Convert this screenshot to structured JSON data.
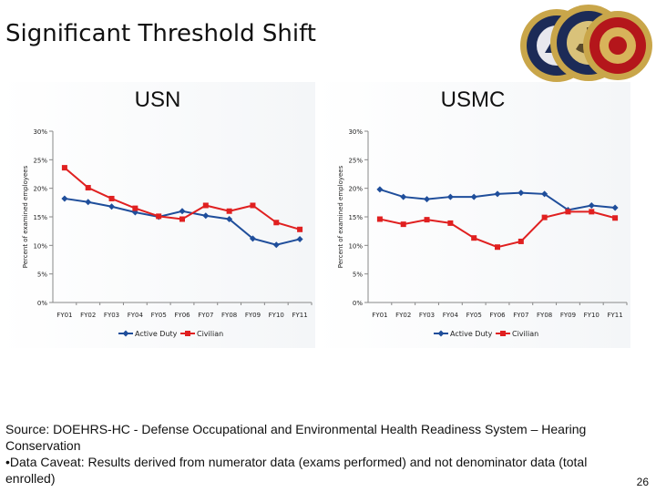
{
  "slide": {
    "title": "Significant Threshold Shift",
    "source_line1": "Source: DOEHRS-HC - Defense Occupational and Environmental Health Readiness System – Hearing Conservation",
    "source_line2": "•Data Caveat:  Results derived from numerator data (exams performed) and not denominator data (total enrolled)",
    "page_number": "26"
  },
  "seals": {
    "description_icons": [
      "navy-medicine-seal-icon",
      "department-of-the-navy-seal-icon",
      "marine-corps-seal-icon"
    ]
  },
  "chart_data": [
    {
      "type": "line",
      "title": "USN",
      "ylabel": "Percent of examined employees",
      "xlabel": "",
      "categories": [
        "FY01",
        "FY02",
        "FY03",
        "FY04",
        "FY05",
        "FY06",
        "FY07",
        "FY08",
        "FY09",
        "FY10",
        "FY11"
      ],
      "ylim": [
        0,
        30
      ],
      "yticks": [
        "0%",
        "5%",
        "10%",
        "15%",
        "20%",
        "25%",
        "30%"
      ],
      "grid": false,
      "legend": "bottom",
      "series": [
        {
          "name": "Active Duty",
          "color": "#1f4e9b",
          "marker": "diamond",
          "values": [
            18.2,
            17.6,
            16.8,
            15.8,
            15.0,
            16.0,
            15.2,
            14.6,
            11.2,
            10.1,
            11.1
          ]
        },
        {
          "name": "Civilian",
          "color": "#e02020",
          "marker": "square",
          "values": [
            23.6,
            20.1,
            18.2,
            16.5,
            15.1,
            14.6,
            17.0,
            16.0,
            17.0,
            14.0,
            12.8
          ]
        }
      ]
    },
    {
      "type": "line",
      "title": "USMC",
      "ylabel": "Percent of examined employees",
      "xlabel": "",
      "categories": [
        "FY01",
        "FY02",
        "FY03",
        "FY04",
        "FY05",
        "FY06",
        "FY07",
        "FY08",
        "FY09",
        "FY10",
        "FY11"
      ],
      "ylim": [
        0,
        30
      ],
      "yticks": [
        "0%",
        "5%",
        "10%",
        "15%",
        "20%",
        "25%",
        "30%"
      ],
      "grid": false,
      "legend": "bottom",
      "series": [
        {
          "name": "Active Duty",
          "color": "#1f4e9b",
          "marker": "diamond",
          "values": [
            19.8,
            18.5,
            18.1,
            18.5,
            18.5,
            19.0,
            19.2,
            19.0,
            16.2,
            17.0,
            16.6
          ]
        },
        {
          "name": "Civilian",
          "color": "#e02020",
          "marker": "square",
          "values": [
            14.6,
            13.7,
            14.5,
            13.9,
            11.3,
            9.7,
            10.7,
            14.9,
            15.9,
            15.9,
            14.8
          ]
        }
      ]
    }
  ]
}
